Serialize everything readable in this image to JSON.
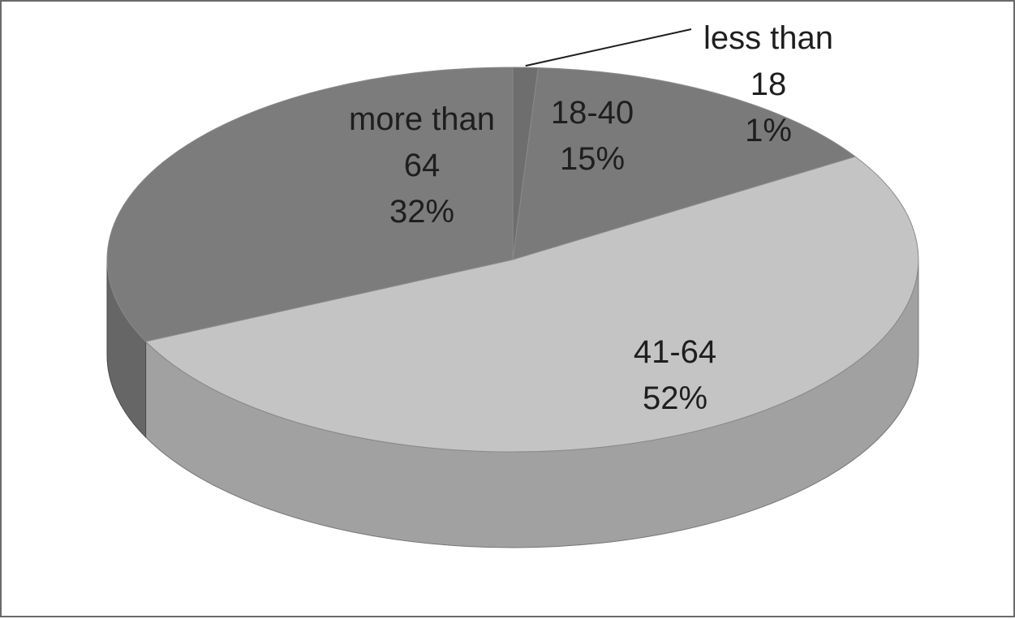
{
  "chart_data": {
    "type": "pie",
    "title": "",
    "style": "3d",
    "slices": [
      {
        "label_lines": [
          "less than",
          "18"
        ],
        "value": 1,
        "value_label": "1%",
        "color": "#6e6e6e"
      },
      {
        "label_lines": [
          "18-40"
        ],
        "value": 15,
        "value_label": "15%",
        "color": "#7a7a7a"
      },
      {
        "label_lines": [
          "41-64"
        ],
        "value": 52,
        "value_label": "52%",
        "color": "#c4c4c4"
      },
      {
        "label_lines": [
          "more than",
          "64"
        ],
        "value": 32,
        "value_label": "32%",
        "color": "#7c7c7c"
      }
    ]
  }
}
